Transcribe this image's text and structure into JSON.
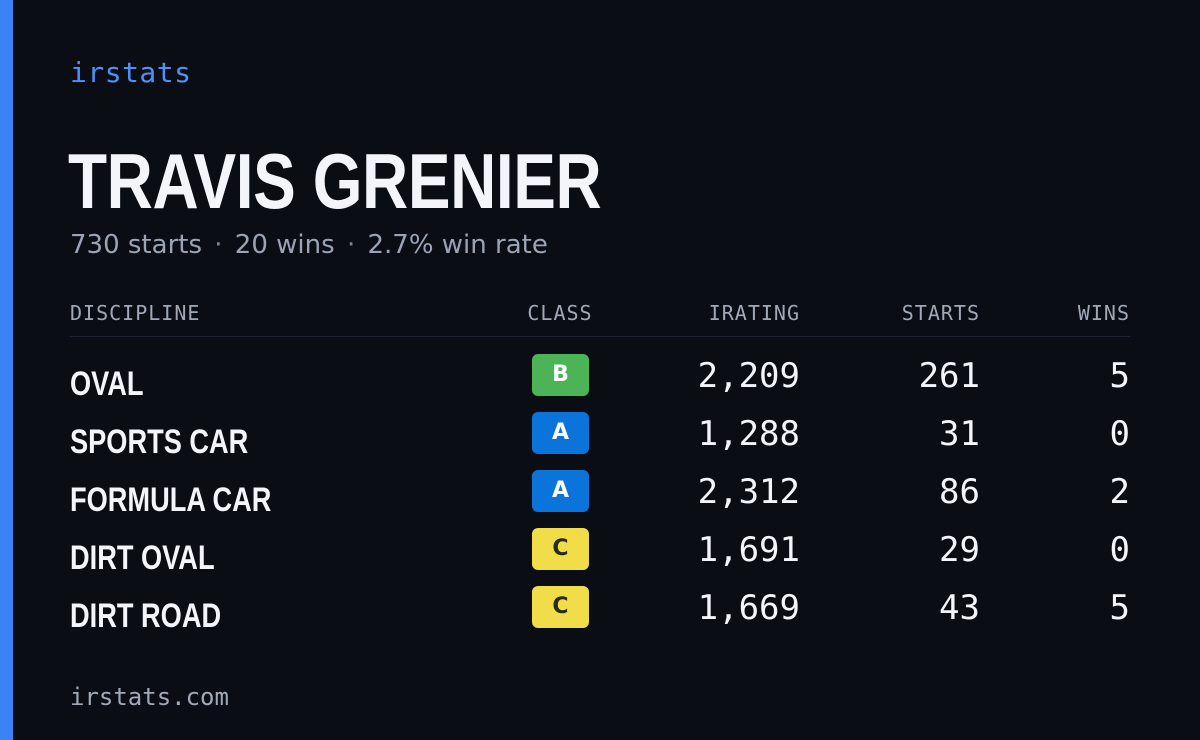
{
  "brand": {
    "label": "irstats",
    "accent_color": "#3b82f6"
  },
  "profile": {
    "name": "TRAVIS GRENIER",
    "summary": {
      "starts": "730 starts",
      "wins": "20 wins",
      "win_rate": "2.7% win rate",
      "separator": "·"
    }
  },
  "table": {
    "headers": {
      "discipline": "DISCIPLINE",
      "class": "CLASS",
      "irating": "IRATING",
      "starts": "STARTS",
      "wins": "WINS"
    },
    "rows": [
      {
        "discipline": "OVAL",
        "class": "B",
        "irating": "2,209",
        "starts": "261",
        "wins": "5"
      },
      {
        "discipline": "SPORTS CAR",
        "class": "A",
        "irating": "1,288",
        "starts": "31",
        "wins": "0"
      },
      {
        "discipline": "FORMULA CAR",
        "class": "A",
        "irating": "2,312",
        "starts": "86",
        "wins": "2"
      },
      {
        "discipline": "DIRT OVAL",
        "class": "C",
        "irating": "1,691",
        "starts": "29",
        "wins": "0"
      },
      {
        "discipline": "DIRT ROAD",
        "class": "C",
        "irating": "1,669",
        "starts": "43",
        "wins": "5"
      }
    ]
  },
  "class_colors": {
    "A": {
      "background": "#0b74da",
      "text": "#ffffff"
    },
    "B": {
      "background": "#4cb456",
      "text": "#ffffff"
    },
    "C": {
      "background": "#f0dd47",
      "text": "#2a2a1a"
    }
  },
  "footer": {
    "url": "irstats.com"
  }
}
